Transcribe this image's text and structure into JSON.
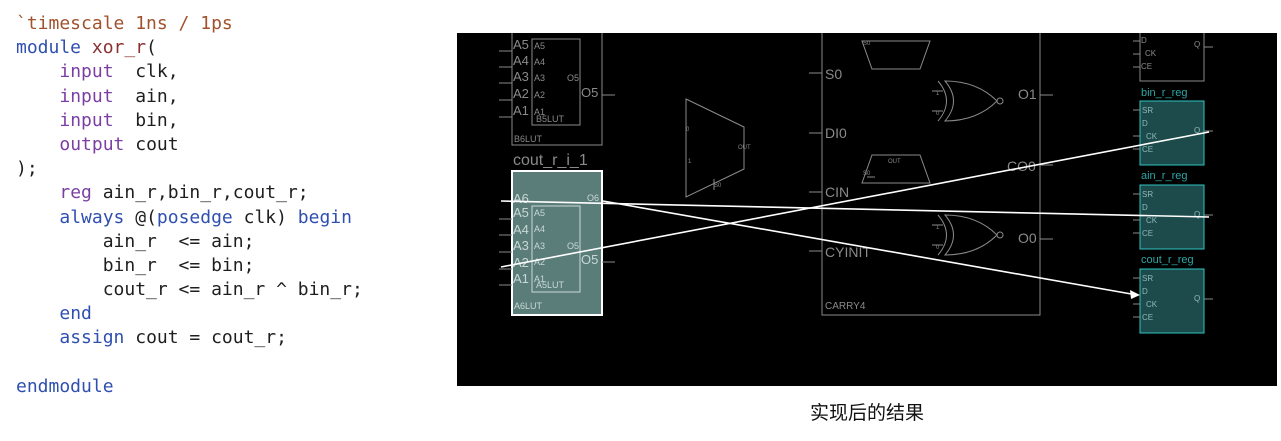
{
  "code": {
    "lines": [
      [
        "`timescale 1ns / 1ps"
      ],
      [
        "module ",
        "xor_r",
        "("
      ],
      [
        "    ",
        "input",
        "  clk,"
      ],
      [
        "    ",
        "input",
        "  ain,"
      ],
      [
        "    ",
        "input",
        "  bin,"
      ],
      [
        "    ",
        "output",
        " cout"
      ],
      [
        ");"
      ],
      [
        "    ",
        "reg",
        " ain_r,bin_r,cout_r;"
      ],
      [
        "    ",
        "always",
        " @(",
        "posedge",
        " clk) ",
        "begin"
      ],
      [
        "        ain_r  <= ain;"
      ],
      [
        "        bin_r  <= bin;"
      ],
      [
        "        cout_r <= ain_r ^ bin_r;"
      ],
      [
        "    ",
        "end"
      ],
      [
        "    ",
        "assign",
        " cout = cout_r;"
      ],
      [
        ""
      ],
      [
        "endmodule"
      ]
    ]
  },
  "schematic": {
    "b6lut": {
      "pins": [
        "A5",
        "A4",
        "A3",
        "A2",
        "A1"
      ],
      "inner_pins": [
        "A5",
        "A4",
        "A3",
        "A2",
        "A1"
      ],
      "inner_out": "O5",
      "inner_name": "B5LUT",
      "out": "O5",
      "name": "B6LUT"
    },
    "cout_lut": {
      "instance": "cout_r_i_1",
      "pins": [
        "A6",
        "A5",
        "A4",
        "A3",
        "A2",
        "A1"
      ],
      "inner_pins": [
        "A5",
        "A4",
        "A3",
        "A2",
        "A1"
      ],
      "inner_out": "O5",
      "inner_name": "A5LUT",
      "out6": "O6",
      "out5": "O5",
      "name": "A6LUT"
    },
    "mux": {
      "in0": "0",
      "in1": "1",
      "out": "OUT",
      "sel": "S0"
    },
    "carry4": {
      "name": "CARRY4",
      "pins": [
        "S0",
        "DI0",
        "CIN",
        "CYINIT"
      ],
      "outs": [
        "O1",
        "CO0",
        "O0"
      ],
      "mux_top_sel": "S0",
      "mux_bot_sel": "S0",
      "mux_bot_out": "OUT",
      "xor_in1": "1",
      "xor_in0": "0"
    },
    "top_reg": {
      "pins": [
        "D",
        "CK",
        "CE"
      ],
      "out": "Q"
    },
    "regs": [
      {
        "name": "bin_r_reg",
        "pins": [
          "SR",
          "D",
          "CK",
          "CE"
        ],
        "out": "Q"
      },
      {
        "name": "ain_r_reg",
        "pins": [
          "SR",
          "D",
          "CK",
          "CE"
        ],
        "out": "Q"
      },
      {
        "name": "cout_r_reg",
        "pins": [
          "SR",
          "D",
          "CK",
          "CE"
        ],
        "out": "Q"
      }
    ],
    "colors": {
      "background": "#000000",
      "wire": "#ffffff",
      "cell_outline": "#8a8a8a",
      "selected_lut": "#5a7d7a",
      "reg_fill": "#1d4a4a",
      "reg_border": "#2fc4c4"
    }
  },
  "caption": "实现后的结果"
}
